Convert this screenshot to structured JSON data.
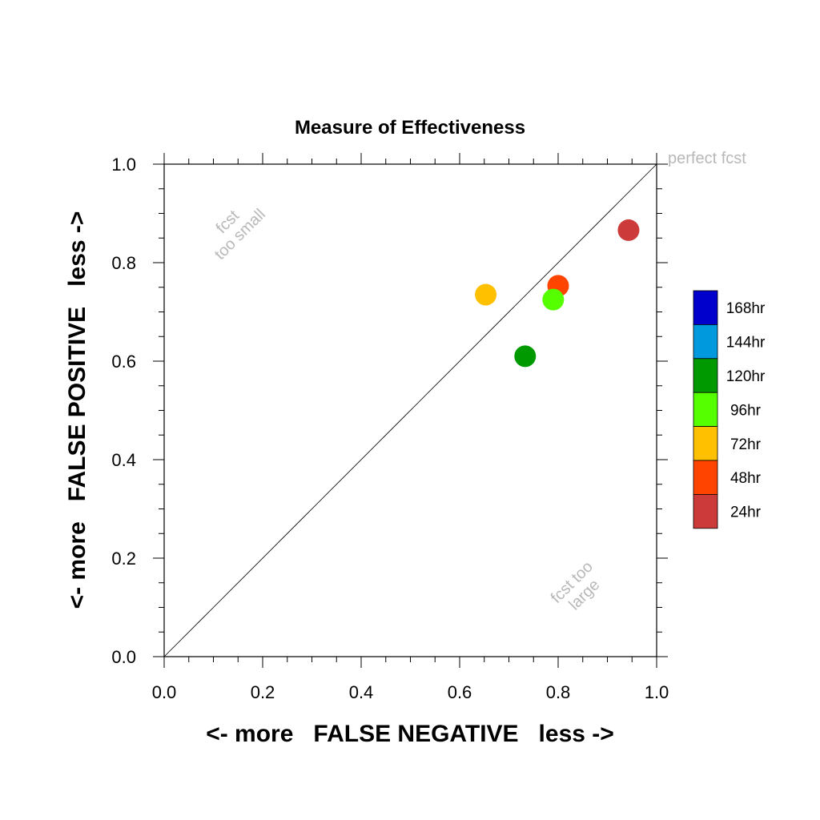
{
  "chart_data": {
    "type": "scatter",
    "title": "Measure of Effectiveness",
    "xlabel": "<- more   FALSE NEGATIVE   less ->",
    "ylabel": "<- more   FALSE POSITIVE   less ->",
    "xlim": [
      0.0,
      1.0
    ],
    "ylim": [
      0.0,
      1.0
    ],
    "xticks": [
      "0.0",
      "0.2",
      "0.4",
      "0.6",
      "0.8",
      "1.0"
    ],
    "yticks": [
      "0.0",
      "0.2",
      "0.4",
      "0.6",
      "0.8",
      "1.0"
    ],
    "grid": false,
    "reference_line": [
      [
        0.0,
        0.0
      ],
      [
        1.0,
        1.0
      ]
    ],
    "points": [
      {
        "label": "24hr",
        "x": 0.943,
        "y": 0.866,
        "color": "#cc3a3a"
      },
      {
        "label": "48hr",
        "x": 0.8,
        "y": 0.753,
        "color": "#ff4400"
      },
      {
        "label": "72hr",
        "x": 0.653,
        "y": 0.735,
        "color": "#ffc000"
      },
      {
        "label": "96hr",
        "x": 0.79,
        "y": 0.725,
        "color": "#55ff00"
      },
      {
        "label": "120hr",
        "x": 0.733,
        "y": 0.61,
        "color": "#009900"
      }
    ],
    "legend": {
      "placement": "right",
      "entries": [
        {
          "label": "168hr",
          "color": "#0000cc"
        },
        {
          "label": "144hr",
          "color": "#0099dd"
        },
        {
          "label": "120hr",
          "color": "#009900"
        },
        {
          "label": "96hr",
          "color": "#55ff00"
        },
        {
          "label": "72hr",
          "color": "#ffc000"
        },
        {
          "label": "48hr",
          "color": "#ff4400"
        },
        {
          "label": "24hr",
          "color": "#cc3a3a"
        }
      ]
    },
    "annotations": {
      "perfect": "perfect fcst",
      "small_1": "fcst",
      "small_2": "too small",
      "large_1": "fcst too",
      "large_2": "large"
    }
  }
}
